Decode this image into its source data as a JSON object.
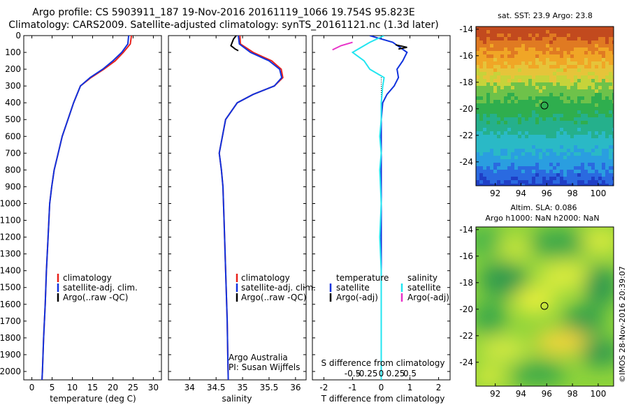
{
  "header": {
    "title_line1": "Argo profile: CS 5903911_187 19-Nov-2016 20161119_1066 19.754S 95.823E",
    "title_line2": "Climatology: CARS2009. Satellite-adjusted climatology: synTS_20161121.nc (1.3d later)"
  },
  "map_titles": {
    "sst": "sat. SST: 23.9 Argo: 23.8",
    "sla_line1": "Altim. SLA: 0.086",
    "sla_line2": "Argo h1000: NaN h2000: NaN"
  },
  "footer": {
    "credit_line1": "Argo Australia",
    "credit_line2": "PI: Susan Wijffels",
    "timestamp": "©IMOS 28-Nov-2016 20:39:07"
  },
  "colors": {
    "climatology": "#e8221b",
    "satellite": "#1133dd",
    "argo": "#000000",
    "sal_satellite": "#22e5f0",
    "sal_argo": "#e833c8"
  },
  "chart_data": [
    {
      "type": "line",
      "xlabel": "temperature (deg C)",
      "ylabel": "",
      "xlim": [
        -2,
        32
      ],
      "ylim": [
        2050,
        0
      ],
      "xticks": [
        0,
        5,
        10,
        15,
        20,
        25,
        30
      ],
      "yticks": [
        0,
        100,
        200,
        300,
        400,
        500,
        600,
        700,
        800,
        900,
        1000,
        1100,
        1200,
        1300,
        1400,
        1500,
        1600,
        1700,
        1800,
        1900,
        2000
      ],
      "legend": [
        "climatology",
        "satellite-adj. clim.",
        "Argo(..raw -QC)"
      ],
      "series": [
        {
          "name": "climatology",
          "color": "#e8221b",
          "x": [
            24.6,
            24.3,
            22.6,
            20.6,
            17.8,
            14.6,
            12.0,
            10.3,
            8.9,
            7.5,
            6.5,
            5.5,
            4.9,
            4.4,
            4.0,
            3.6,
            3.3,
            2.9,
            2.6,
            2.5
          ],
          "y": [
            0,
            50,
            100,
            150,
            200,
            250,
            300,
            400,
            500,
            600,
            700,
            800,
            900,
            1000,
            1200,
            1400,
            1600,
            1800,
            2000,
            2050
          ]
        },
        {
          "name": "satellite-adj. clim.",
          "color": "#1133dd",
          "x": [
            23.9,
            23.7,
            22.2,
            20.0,
            17.5,
            14.4,
            12.0,
            10.3,
            8.9,
            7.5,
            6.5,
            5.5,
            4.9,
            4.4,
            4.0,
            3.6,
            3.3,
            2.9,
            2.6,
            2.5
          ],
          "y": [
            0,
            50,
            100,
            150,
            200,
            250,
            300,
            400,
            500,
            600,
            700,
            800,
            900,
            1000,
            1200,
            1400,
            1600,
            1800,
            2000,
            2050
          ]
        }
      ]
    },
    {
      "type": "line",
      "xlabel": "salinity",
      "xlim": [
        33.6,
        36.2
      ],
      "ylim": [
        2050,
        0
      ],
      "xticks": [
        34,
        34.5,
        35,
        35.5,
        36
      ],
      "legend": [
        "climatology",
        "satellite-adj. clim.",
        "Argo(..raw -QC)"
      ],
      "series": [
        {
          "name": "climatology",
          "color": "#e8221b",
          "x": [
            34.95,
            34.96,
            35.2,
            35.55,
            35.73,
            35.76,
            35.6,
            35.2,
            34.9,
            34.68,
            34.56,
            34.6,
            34.63,
            34.65,
            34.67,
            34.69,
            34.71,
            34.72,
            34.73
          ],
          "y": [
            0,
            50,
            100,
            150,
            200,
            250,
            300,
            350,
            400,
            500,
            700,
            800,
            900,
            1100,
            1300,
            1500,
            1700,
            1900,
            2050
          ]
        },
        {
          "name": "satellite-adj. clim.",
          "color": "#1133dd",
          "x": [
            34.92,
            34.94,
            35.15,
            35.5,
            35.7,
            35.74,
            35.6,
            35.2,
            34.9,
            34.68,
            34.56,
            34.6,
            34.63,
            34.65,
            34.67,
            34.69,
            34.71,
            34.72,
            34.73
          ],
          "y": [
            0,
            50,
            100,
            150,
            200,
            250,
            300,
            350,
            400,
            500,
            700,
            800,
            900,
            1100,
            1300,
            1500,
            1700,
            1900,
            2050
          ]
        },
        {
          "name": "Argo(..raw -QC)",
          "color": "#000000",
          "x": [
            34.88,
            34.83,
            34.78,
            34.86,
            34.92
          ],
          "y": [
            0,
            20,
            60,
            80,
            90
          ]
        }
      ]
    },
    {
      "type": "line",
      "xlabel": "T difference from climatology",
      "xlabel_top": "S difference from climatology",
      "xlim": [
        -2.4,
        2.4
      ],
      "ylim": [
        2050,
        0
      ],
      "xticks": [
        -2,
        -1,
        0,
        1,
        2
      ],
      "top_ticks": [
        "-0.5",
        "-0.25",
        "0",
        "0.25",
        "0.5"
      ],
      "legend_headers": [
        "temperature",
        "salinity"
      ],
      "legend": [
        "satellite",
        "Argo(-adj)",
        "satellite",
        "Argo(-adj)"
      ],
      "series": [
        {
          "name": "satellite",
          "color": "#1133dd",
          "x": [
            -0.4,
            0.4,
            0.9,
            0.75,
            0.55,
            0.6,
            0.45,
            0.2,
            0.05,
            0.0,
            0.0,
            0.0,
            0.0,
            0.0,
            0.0,
            0.0,
            0.0,
            0.0,
            0.0
          ],
          "y": [
            0,
            40,
            100,
            150,
            200,
            250,
            300,
            350,
            400,
            500,
            600,
            800,
            1000,
            1200,
            1400,
            1600,
            1800,
            1900,
            2050
          ]
        },
        {
          "name": "satellite",
          "color": "#22e5f0",
          "x": [
            0.1,
            -0.4,
            -1.0,
            -0.6,
            -0.4,
            0.1,
            0.05,
            0.0,
            0.0,
            -0.05,
            0.0,
            -0.05,
            0.0,
            -0.05,
            0.0,
            0.0,
            0.0,
            0.0
          ],
          "y": [
            0,
            40,
            100,
            150,
            200,
            250,
            300,
            400,
            500,
            600,
            700,
            800,
            1000,
            1200,
            1400,
            1600,
            1800,
            2050
          ]
        },
        {
          "name": "Argo(-adj)",
          "color": "#000000",
          "x": [
            0.5,
            0.9,
            0.6
          ],
          "y": [
            55,
            70,
            80
          ]
        },
        {
          "name": "Argo(-adj)",
          "color": "#e833c8",
          "x": [
            -1.0,
            -1.4,
            -1.7
          ],
          "y": [
            40,
            60,
            85
          ]
        }
      ]
    },
    {
      "type": "heatmap",
      "title": "sat. SST: 23.9 Argo: 23.8",
      "xlim": [
        90.5,
        101.2
      ],
      "ylim": [
        -25.8,
        -13.8
      ],
      "xticks": [
        92,
        94,
        96,
        98,
        100
      ],
      "yticks": [
        -14,
        -16,
        -18,
        -20,
        -22,
        -24
      ],
      "marker": {
        "lon": 95.823,
        "lat": -19.754
      }
    },
    {
      "type": "heatmap",
      "title": "Altim. SLA: 0.086",
      "xlim": [
        90.5,
        101.2
      ],
      "ylim": [
        -25.8,
        -13.8
      ],
      "xticks": [
        92,
        94,
        96,
        98,
        100
      ],
      "yticks": [
        -14,
        -16,
        -18,
        -20,
        -22,
        -24
      ],
      "marker": {
        "lon": 95.823,
        "lat": -19.754
      }
    }
  ]
}
